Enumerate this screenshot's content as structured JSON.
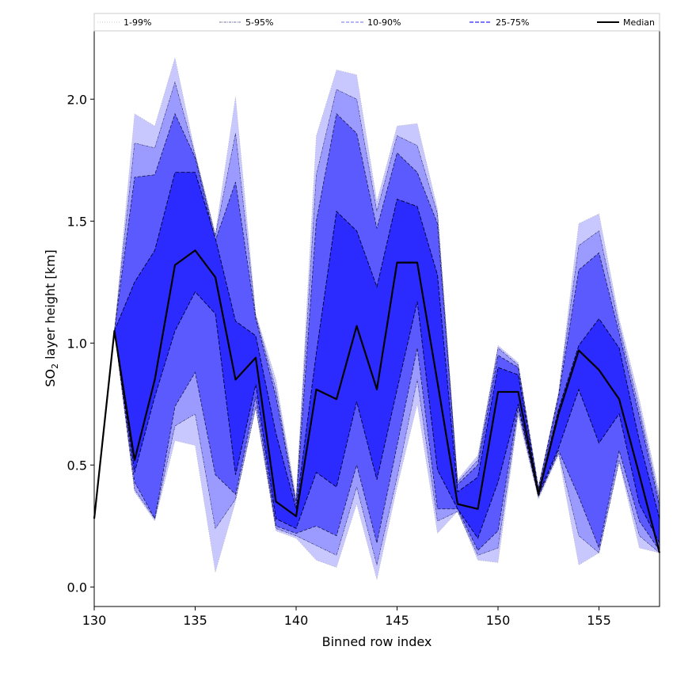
{
  "chart_data": {
    "type": "area",
    "xlabel": "Binned row index",
    "ylabel_main": "SO",
    "ylabel_sub": "2",
    "ylabel_rest": " layer height [km]",
    "xlim": [
      130,
      158
    ],
    "ylim": [
      -0.08,
      2.28
    ],
    "xticks": [
      130,
      135,
      140,
      145,
      150,
      155
    ],
    "yticks": [
      0.0,
      0.5,
      1.0,
      1.5,
      2.0
    ],
    "x": [
      130,
      131,
      132,
      133,
      134,
      135,
      136,
      137,
      138,
      139,
      140,
      141,
      142,
      143,
      144,
      145,
      146,
      147,
      148,
      149,
      150,
      151,
      152,
      153,
      154,
      155,
      156,
      157,
      158
    ],
    "bands": [
      {
        "name": "1-99%",
        "color": "#c8c8ff",
        "lower": [
          0.28,
          1.05,
          0.39,
          0.27,
          0.6,
          0.58,
          0.06,
          0.35,
          0.73,
          0.23,
          0.2,
          0.11,
          0.08,
          0.34,
          0.03,
          0.41,
          0.75,
          0.22,
          0.31,
          0.11,
          0.1,
          0.7,
          0.36,
          0.54,
          0.09,
          0.14,
          0.51,
          0.16,
          0.14
        ],
        "upper": [
          0.28,
          1.05,
          1.94,
          1.89,
          2.17,
          1.78,
          1.45,
          2.01,
          1.12,
          0.85,
          0.37,
          1.85,
          2.12,
          2.1,
          1.58,
          1.89,
          1.9,
          1.55,
          0.44,
          0.54,
          0.99,
          0.92,
          0.41,
          0.8,
          1.49,
          1.53,
          1.1,
          0.77,
          0.38
        ]
      },
      {
        "name": "5-95%",
        "color": "#9b9bff",
        "lower": [
          0.28,
          1.05,
          0.4,
          0.28,
          0.66,
          0.71,
          0.24,
          0.36,
          0.74,
          0.24,
          0.21,
          0.17,
          0.13,
          0.41,
          0.09,
          0.45,
          0.85,
          0.27,
          0.31,
          0.13,
          0.16,
          0.72,
          0.37,
          0.55,
          0.21,
          0.14,
          0.52,
          0.21,
          0.14
        ],
        "upper": [
          0.28,
          1.05,
          1.82,
          1.8,
          2.07,
          1.77,
          1.44,
          1.86,
          1.11,
          0.81,
          0.35,
          1.69,
          2.04,
          2.0,
          1.54,
          1.85,
          1.81,
          1.53,
          0.43,
          0.52,
          0.98,
          0.91,
          0.41,
          0.79,
          1.4,
          1.46,
          1.07,
          0.73,
          0.35
        ]
      },
      {
        "name": "10-90%",
        "color": "#5a5aff",
        "lower": [
          0.28,
          1.05,
          0.43,
          0.28,
          0.74,
          0.88,
          0.46,
          0.38,
          0.78,
          0.25,
          0.22,
          0.25,
          0.21,
          0.5,
          0.18,
          0.58,
          0.98,
          0.32,
          0.32,
          0.15,
          0.23,
          0.74,
          0.37,
          0.56,
          0.37,
          0.16,
          0.56,
          0.27,
          0.15
        ],
        "upper": [
          0.28,
          1.05,
          1.68,
          1.69,
          1.94,
          1.76,
          1.42,
          1.66,
          1.1,
          0.78,
          0.34,
          1.5,
          1.94,
          1.86,
          1.47,
          1.78,
          1.7,
          1.49,
          0.42,
          0.5,
          0.95,
          0.9,
          0.4,
          0.78,
          1.3,
          1.37,
          1.04,
          0.7,
          0.33
        ]
      },
      {
        "name": "25-75%",
        "color": "#2b2bff",
        "lower": [
          0.28,
          1.05,
          0.47,
          0.78,
          1.05,
          1.21,
          1.12,
          0.46,
          0.83,
          0.28,
          0.24,
          0.47,
          0.41,
          0.76,
          0.44,
          0.81,
          1.17,
          0.48,
          0.32,
          0.2,
          0.43,
          0.75,
          0.38,
          0.57,
          0.81,
          0.59,
          0.71,
          0.34,
          0.18
        ],
        "upper": [
          0.28,
          1.05,
          1.25,
          1.38,
          1.7,
          1.7,
          1.43,
          1.09,
          1.03,
          0.63,
          0.32,
          0.96,
          1.54,
          1.46,
          1.23,
          1.59,
          1.56,
          1.28,
          0.39,
          0.45,
          0.9,
          0.87,
          0.39,
          0.73,
          0.99,
          1.1,
          0.98,
          0.6,
          0.28
        ]
      }
    ],
    "median": {
      "name": "Median",
      "color": "#000000",
      "values": [
        0.28,
        1.05,
        0.52,
        0.85,
        1.32,
        1.38,
        1.27,
        0.85,
        0.94,
        0.35,
        0.29,
        0.81,
        0.77,
        1.07,
        0.81,
        1.33,
        1.33,
        0.84,
        0.34,
        0.32,
        0.8,
        0.8,
        0.38,
        0.71,
        0.97,
        0.89,
        0.77,
        0.46,
        0.14
      ]
    },
    "legend": {
      "position": "top",
      "entries": [
        {
          "label": "1-99%",
          "style": "dotted-light"
        },
        {
          "label": "5-95%",
          "style": "dashdot"
        },
        {
          "label": "10-90%",
          "style": "dashed"
        },
        {
          "label": "25-75%",
          "style": "dashed-dark"
        },
        {
          "label": "Median",
          "style": "solid"
        }
      ]
    }
  }
}
